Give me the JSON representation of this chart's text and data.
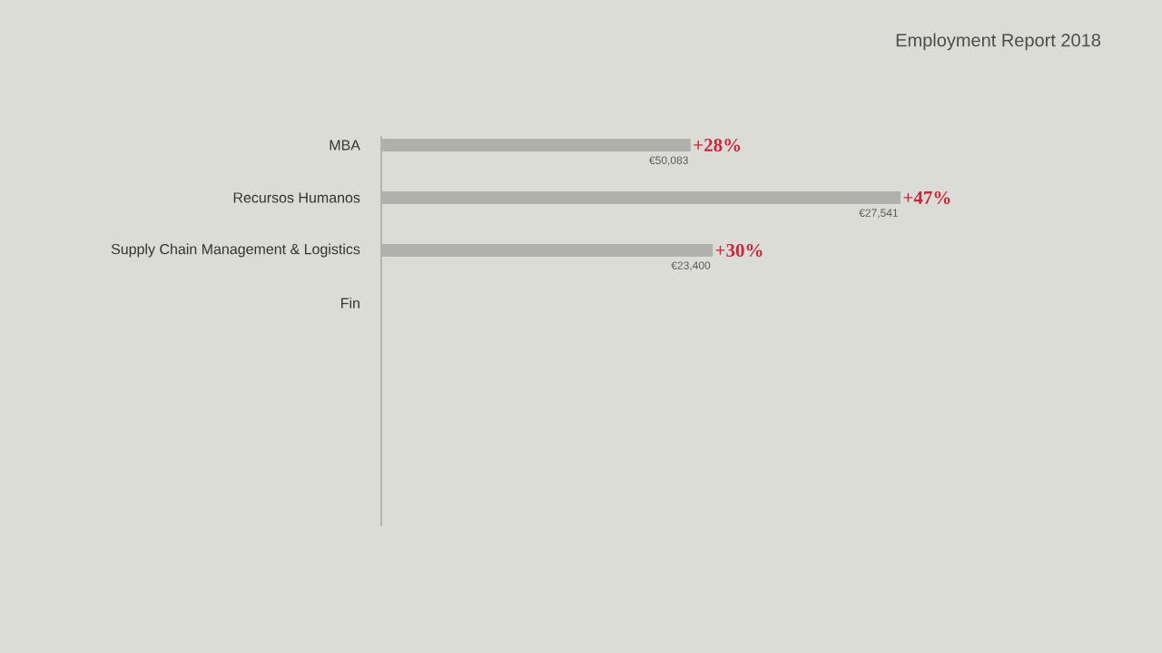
{
  "chart_data": {
    "type": "bar",
    "orientation": "horizontal",
    "title": "Employment Report 2018",
    "categories": [
      "MBA",
      "Recursos Humanos",
      "Supply Chain Management & Logistics",
      "Fin"
    ],
    "values": [
      28,
      47,
      30,
      null
    ],
    "color": "#b0b0ac",
    "value_labels": [
      "+28%",
      "+47%",
      "+30%",
      null
    ],
    "annotations": [
      {
        "text": "€50,083",
        "y": "MBA"
      },
      {
        "text": "€27,541",
        "y": "Recursos Humanos"
      },
      {
        "text": "€23,400",
        "y": "Supply Chain Management & Logistics"
      }
    ]
  }
}
